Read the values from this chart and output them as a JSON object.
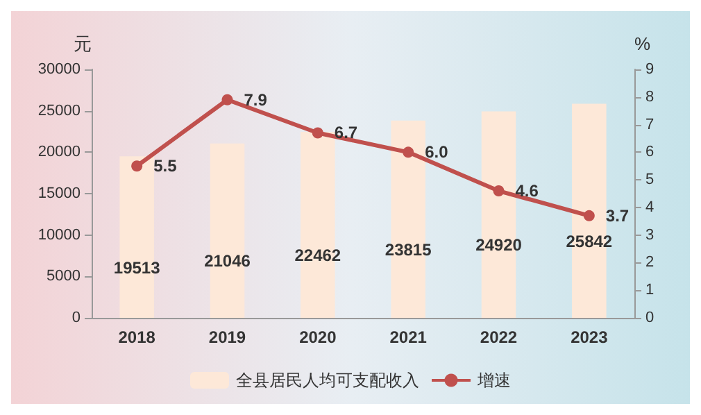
{
  "chart_data": {
    "type": "bar",
    "categories": [
      "2018",
      "2019",
      "2020",
      "2021",
      "2022",
      "2023"
    ],
    "ylabel": "元",
    "y2label": "%",
    "series": [
      {
        "name": "全县居民人均可支配收入",
        "color": "#fde8d8",
        "values": [
          19513,
          21046,
          22462,
          23815,
          24920,
          25842
        ]
      },
      {
        "name": "增速",
        "type": "line",
        "axis": "y2",
        "color": "#c0504d",
        "values": [
          5.5,
          7.9,
          6.7,
          6.0,
          4.6,
          3.7
        ],
        "value_labels": [
          "5.5",
          "7.9",
          "6.7",
          "6.0",
          "4.6",
          "3.7"
        ]
      }
    ],
    "ylim": [
      0,
      30000
    ],
    "yticks": [
      0,
      5000,
      10000,
      15000,
      20000,
      25000,
      30000
    ],
    "y2lim": [
      0,
      9
    ],
    "y2ticks": [
      0,
      1,
      2,
      3,
      4,
      5,
      6,
      7,
      8,
      9
    ],
    "data_labels": true,
    "legend": "bottom",
    "marker": "circle",
    "grid": false
  }
}
